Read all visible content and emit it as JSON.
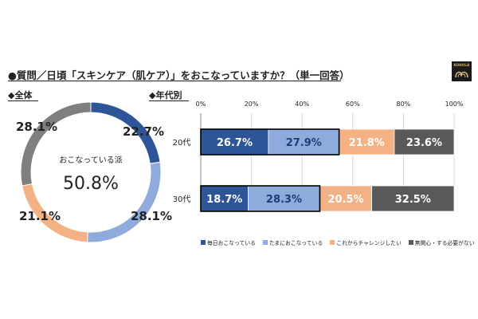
{
  "title": "●質問／日頃「スキンケア（肌ケア）」をおこなっていますか？（単一回答）",
  "logo_text": "KOHOLA",
  "colors": {
    "daily": "#2e5597",
    "sometimes": "#8fabdc",
    "challenge": "#f4b183",
    "none": "#595959"
  },
  "chart_data": [
    {
      "type": "pie",
      "section_label": "◆全体",
      "center_label": "おこなっている派",
      "center_value": "50.8%",
      "slices": [
        {
          "label": "毎日おこなっている",
          "value": 22.7,
          "text": "22.7%",
          "color": "#2e5597"
        },
        {
          "label": "たまにおこなっている",
          "value": 28.1,
          "text": "28.1%",
          "color": "#8fabdc"
        },
        {
          "label": "これからチャレンジしたい",
          "value": 21.1,
          "text": "21.1%",
          "color": "#f4b183"
        },
        {
          "label": "無関心・する必要がない",
          "value": 28.1,
          "text": "28.1%",
          "color": "#7f7f7f"
        }
      ]
    },
    {
      "type": "bar",
      "stacked": true,
      "orientation": "horizontal",
      "section_label": "◆年代別",
      "categories": [
        "20代",
        "30代"
      ],
      "x_ticks": [
        "0%",
        "20%",
        "40%",
        "60%",
        "80%",
        "100%"
      ],
      "xlim": [
        0,
        100
      ],
      "series": [
        {
          "name": "毎日おこなっている",
          "values": [
            26.7,
            18.7
          ],
          "labels": [
            "26.7%",
            "18.7%"
          ],
          "color": "#2e5597"
        },
        {
          "name": "たまにおこなっている",
          "values": [
            27.9,
            28.3
          ],
          "labels": [
            "27.9%",
            "28.3%"
          ],
          "color": "#8fabdc"
        },
        {
          "name": "これからチャレンジしたい",
          "values": [
            21.8,
            20.5
          ],
          "labels": [
            "21.8%",
            "20.5%"
          ],
          "color": "#f4b183"
        },
        {
          "name": "無関心・する必要がない",
          "values": [
            23.6,
            32.5
          ],
          "labels": [
            "23.6%",
            "32.5%"
          ],
          "color": "#595959"
        }
      ],
      "highlight_outline": "#000000",
      "legend_position": "bottom"
    }
  ]
}
